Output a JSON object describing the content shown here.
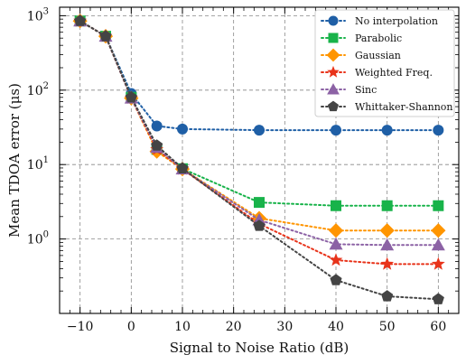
{
  "chart_data": {
    "type": "line",
    "xlabel": "Signal to Noise Ratio (dB)",
    "ylabel": "Mean TDOA error (μs)",
    "yscale": "log",
    "xlim": [
      -14,
      64
    ],
    "ylim": [
      0.1,
      1300
    ],
    "xticks": [
      -10,
      0,
      10,
      20,
      30,
      40,
      50,
      60
    ],
    "xtick_labels": [
      "−10",
      "0",
      "10",
      "20",
      "30",
      "40",
      "50",
      "60"
    ],
    "yticks": [
      1,
      10,
      100,
      1000
    ],
    "ytick_labels": [
      "10",
      "10",
      "10",
      "10"
    ],
    "ytick_exponents": [
      "0",
      "1",
      "2",
      "3"
    ],
    "grid": true,
    "legend_position": "top-right",
    "x": [
      -10,
      -5,
      0,
      5,
      10,
      25,
      40,
      50,
      60
    ],
    "series": [
      {
        "name": "No interpolation",
        "color": "#1f5fa6",
        "marker": "circle",
        "values": [
          850,
          530,
          90,
          33,
          30,
          29,
          29,
          29,
          29
        ]
      },
      {
        "name": "Parabolic",
        "color": "#18b34a",
        "marker": "square",
        "values": [
          850,
          530,
          80,
          16,
          8.8,
          3.1,
          2.8,
          2.8,
          2.8
        ]
      },
      {
        "name": "Gaussian",
        "color": "#ff9500",
        "marker": "diamond",
        "values": [
          850,
          530,
          78,
          15,
          8.7,
          1.9,
          1.3,
          1.3,
          1.3
        ]
      },
      {
        "name": "Weighted Freq.",
        "color": "#e8331a",
        "marker": "star",
        "values": [
          850,
          530,
          78,
          16,
          8.7,
          1.6,
          0.52,
          0.46,
          0.46
        ]
      },
      {
        "name": "Sinc",
        "color": "#8c62a5",
        "marker": "triangle",
        "values": [
          850,
          530,
          78,
          17,
          8.7,
          1.8,
          0.85,
          0.83,
          0.83
        ]
      },
      {
        "name": "Whittaker-Shannon",
        "color": "#444444",
        "marker": "pentagon",
        "values": [
          850,
          530,
          80,
          18,
          8.9,
          1.5,
          0.28,
          0.17,
          0.155
        ]
      }
    ]
  }
}
